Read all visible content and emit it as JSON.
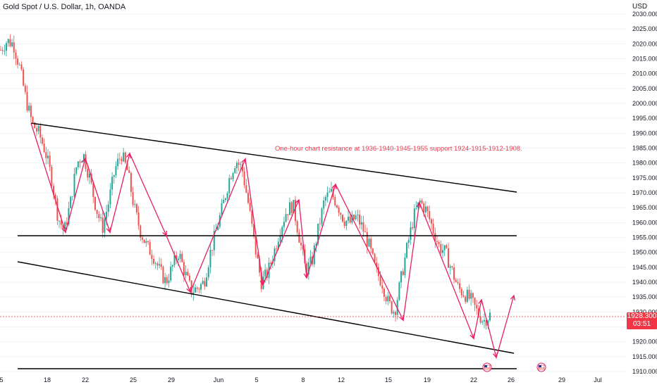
{
  "header": {
    "title": "Gold Spot / U.S. Dollar, 1h, OANDA",
    "currency": "USD"
  },
  "current_price": {
    "value": "1928.300",
    "countdown": "03:51"
  },
  "colors": {
    "bull": "#26a69a",
    "bear": "#ef5350",
    "trend_line": "#000000",
    "zigzag": "#e91e63",
    "annotation": "#e8394b",
    "price_line": "#f23645"
  },
  "chart_data": {
    "type": "candlestick",
    "title": "Gold Spot / U.S. Dollar, 1h, OANDA",
    "ylim": [
      1908,
      2032
    ],
    "y_ticks": [
      1910,
      1915,
      1920,
      1925,
      1930,
      1935,
      1940,
      1945,
      1950,
      1955,
      1960,
      1965,
      1970,
      1975,
      1980,
      1985,
      1990,
      1995,
      2000,
      2005,
      2010,
      2015,
      2020,
      2025,
      2030
    ],
    "x_tick_labels": [
      "5",
      "18",
      "22",
      "25",
      "29",
      "Jun",
      "5",
      "8",
      "12",
      "15",
      "19",
      "22",
      "26",
      "29",
      "Jul"
    ],
    "annotation": "One-hour chart resistance at 1936-1940-1945-1955 support 1924-1915-1912-1908.",
    "horizontal_levels": [
      1955.5,
      1911
    ],
    "price_path": [
      2018,
      2021,
      2020,
      2012,
      2001,
      1993,
      1990,
      1984,
      1975,
      1962,
      1957,
      1967,
      1980,
      1983,
      1975,
      1965,
      1958,
      1967,
      1978,
      1983,
      1977,
      1965,
      1957,
      1952,
      1949,
      1944,
      1940,
      1945,
      1950,
      1943,
      1937,
      1938,
      1940,
      1950,
      1958,
      1966,
      1975,
      1981,
      1978,
      1966,
      1952,
      1940,
      1943,
      1950,
      1958,
      1964,
      1966,
      1955,
      1944,
      1947,
      1958,
      1968,
      1970,
      1966,
      1961,
      1960,
      1962,
      1958,
      1952,
      1944,
      1940,
      1933,
      1930,
      1941,
      1952,
      1962,
      1967,
      1964,
      1958,
      1952,
      1950,
      1944,
      1938,
      1936,
      1934,
      1930,
      1927,
      1929
    ]
  }
}
